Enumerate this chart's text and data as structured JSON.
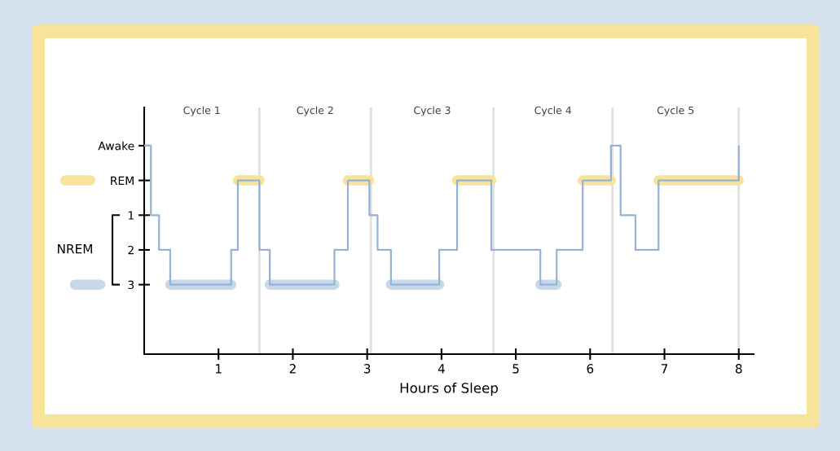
{
  "chart_data": {
    "type": "step",
    "xlabel": "Hours of Sleep",
    "ylabel": "NREM",
    "xlim": [
      0,
      8.2
    ],
    "xticks": [
      1,
      2,
      3,
      4,
      5,
      6,
      7,
      8
    ],
    "ylim": [
      5,
      -2.1
    ],
    "yticks": [
      {
        "value": -1,
        "label": "Awake"
      },
      {
        "value": 0,
        "label": "REM"
      },
      1,
      2,
      3
    ],
    "series": [
      {
        "color": "#f8e39a",
        "x": [
          1.26,
          1.55,
          2.74,
          3.03,
          4.21,
          4.67,
          5.9,
          6.28,
          6.92,
          8.0
        ],
        "values": [
          0,
          null,
          0,
          null,
          0,
          null,
          0,
          null,
          0,
          0
        ]
      },
      {
        "color": "#c9d8e8",
        "x": [
          0.35,
          1.17,
          1.69,
          2.56,
          3.32,
          3.97,
          5.33,
          5.55
        ],
        "values": [
          3,
          null,
          3,
          null,
          3,
          null,
          3,
          3
        ]
      },
      {
        "color": "#94b3d6",
        "x": [
          0,
          0.09,
          0.2,
          0.35,
          1.17,
          1.26,
          1.55,
          1.69,
          2.56,
          2.74,
          3.03,
          3.14,
          3.32,
          3.97,
          4.21,
          4.67,
          5.33,
          5.55,
          5.9,
          6.28,
          6.41,
          6.61,
          6.92,
          8.0
        ],
        "values": [
          -1,
          1,
          2,
          3,
          2,
          0,
          2,
          3,
          2,
          0,
          1,
          2,
          3,
          2,
          0,
          2,
          3,
          2,
          0,
          -1,
          1,
          2,
          0,
          -1
        ]
      }
    ],
    "ref_lines": [
      {
        "axis": "x",
        "value": 1.55,
        "color": "#e0e0e0"
      },
      {
        "axis": "x",
        "value": 3.05,
        "color": "#e0e0e0"
      },
      {
        "axis": "x",
        "value": 4.7,
        "color": "#e0e0e0"
      },
      {
        "axis": "x",
        "value": 6.3,
        "color": "#e0e0e0"
      },
      {
        "axis": "x",
        "value": 8.0,
        "color": "#e0e0e0"
      }
    ],
    "annotations": [
      "Cycle 1",
      "Cycle 2",
      "Cycle 3",
      "Cycle 4",
      "Cycle 5"
    ]
  }
}
